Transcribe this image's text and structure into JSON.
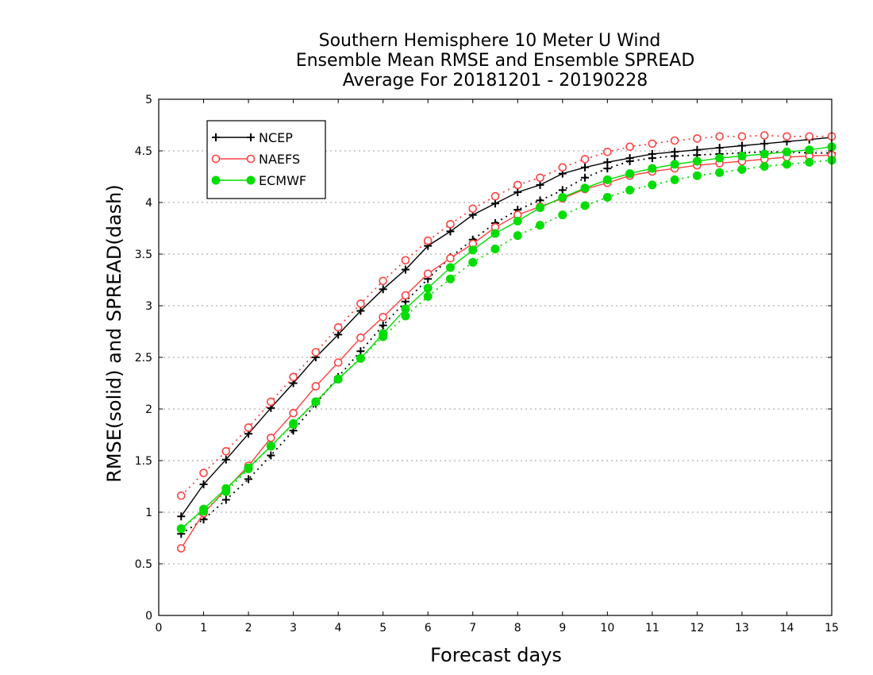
{
  "chart_data": {
    "type": "line",
    "title_lines": [
      "Southern Hemisphere 10 Meter U Wind",
      "Ensemble Mean RMSE and Ensemble SPREAD",
      "Average For 20181201 - 20190228"
    ],
    "xlabel": "Forecast days",
    "ylabel": "RMSE(solid) and SPREAD(dash)",
    "xlim": [
      0,
      15
    ],
    "ylim": [
      0,
      5
    ],
    "x_ticks": [
      "0",
      "1",
      "2",
      "3",
      "4",
      "5",
      "6",
      "7",
      "8",
      "9",
      "10",
      "11",
      "12",
      "13",
      "14",
      "15"
    ],
    "y_ticks": [
      "0",
      "0.5",
      "1",
      "1.5",
      "2",
      "2.5",
      "3",
      "3.5",
      "4",
      "4.5",
      "5"
    ],
    "grid": "horizontal dotted",
    "legend_position": "top-left",
    "x": [
      0.5,
      1,
      1.5,
      2,
      2.5,
      3,
      3.5,
      4,
      4.5,
      5,
      5.5,
      6,
      6.5,
      7,
      7.5,
      8,
      8.5,
      9,
      9.5,
      10,
      10.5,
      11,
      11.5,
      12,
      12.5,
      13,
      13.5,
      14,
      14.5,
      15
    ],
    "series": [
      {
        "name": "NCEP",
        "color": "#000000",
        "marker": "plus",
        "rmse": [
          0.96,
          1.27,
          1.51,
          1.76,
          2.01,
          2.25,
          2.5,
          2.72,
          2.95,
          3.16,
          3.35,
          3.58,
          3.72,
          3.88,
          3.99,
          4.1,
          4.17,
          4.28,
          4.34,
          4.39,
          4.43,
          4.47,
          4.49,
          4.51,
          4.53,
          4.55,
          4.57,
          4.59,
          4.61,
          4.63
        ],
        "spread": [
          0.79,
          0.93,
          1.12,
          1.32,
          1.55,
          1.79,
          2.05,
          2.31,
          2.56,
          2.81,
          3.04,
          3.26,
          3.47,
          3.64,
          3.8,
          3.93,
          4.02,
          4.12,
          4.24,
          4.33,
          4.4,
          4.43,
          4.45,
          4.46,
          4.47,
          4.48,
          4.49,
          4.49,
          4.48,
          4.48
        ]
      },
      {
        "name": "NAEFS",
        "color": "#ff4040",
        "marker": "open-circle",
        "rmse": [
          0.65,
          0.99,
          1.22,
          1.45,
          1.72,
          1.96,
          2.22,
          2.45,
          2.69,
          2.89,
          3.1,
          3.31,
          3.46,
          3.6,
          3.76,
          3.88,
          3.96,
          4.04,
          4.13,
          4.19,
          4.26,
          4.3,
          4.33,
          4.36,
          4.38,
          4.4,
          4.42,
          4.44,
          4.45,
          4.46
        ],
        "spread": [
          1.16,
          1.38,
          1.59,
          1.82,
          2.07,
          2.31,
          2.55,
          2.79,
          3.02,
          3.24,
          3.44,
          3.63,
          3.79,
          3.94,
          4.06,
          4.17,
          4.24,
          4.34,
          4.42,
          4.49,
          4.54,
          4.57,
          4.6,
          4.62,
          4.64,
          4.64,
          4.65,
          4.64,
          4.64,
          4.64
        ]
      },
      {
        "name": "ECMWF",
        "color": "#00dd00",
        "marker": "filled-circle",
        "rmse": [
          0.84,
          1.03,
          1.23,
          1.43,
          1.64,
          1.86,
          2.07,
          2.29,
          2.49,
          2.73,
          2.97,
          3.17,
          3.37,
          3.54,
          3.7,
          3.82,
          3.95,
          4.05,
          4.14,
          4.22,
          4.28,
          4.33,
          4.37,
          4.4,
          4.43,
          4.45,
          4.47,
          4.49,
          4.51,
          4.54
        ],
        "spread": [
          0.84,
          1.01,
          1.2,
          1.42,
          1.64,
          1.85,
          2.07,
          2.29,
          2.49,
          2.7,
          2.9,
          3.09,
          3.26,
          3.42,
          3.55,
          3.68,
          3.78,
          3.88,
          3.97,
          4.05,
          4.12,
          4.17,
          4.22,
          4.26,
          4.29,
          4.32,
          4.35,
          4.37,
          4.39,
          4.41
        ]
      }
    ]
  }
}
